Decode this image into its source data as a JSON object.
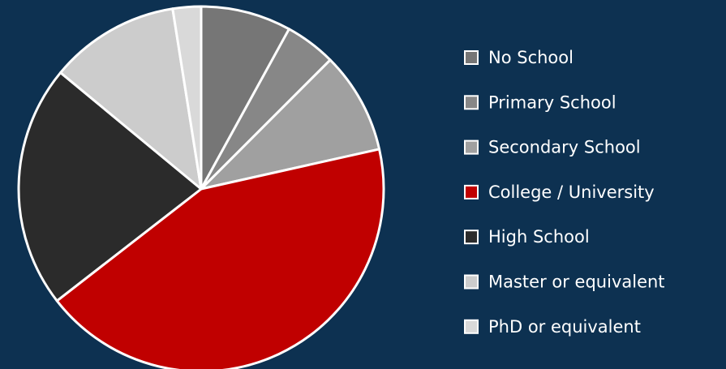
{
  "chart_data": {
    "type": "pie",
    "categories": [
      "No School",
      "Primary School",
      "Secondary School",
      "College / University",
      "High School",
      "Master or equivalent",
      "PhD or equivalent"
    ],
    "values": [
      8,
      4.5,
      9,
      43,
      21.5,
      11.5,
      2.5
    ],
    "colors": [
      "#767676",
      "#878787",
      "#a0a0a0",
      "#c00000",
      "#2b2b2b",
      "#cccccc",
      "#d9d9d9"
    ],
    "legend": "right"
  }
}
